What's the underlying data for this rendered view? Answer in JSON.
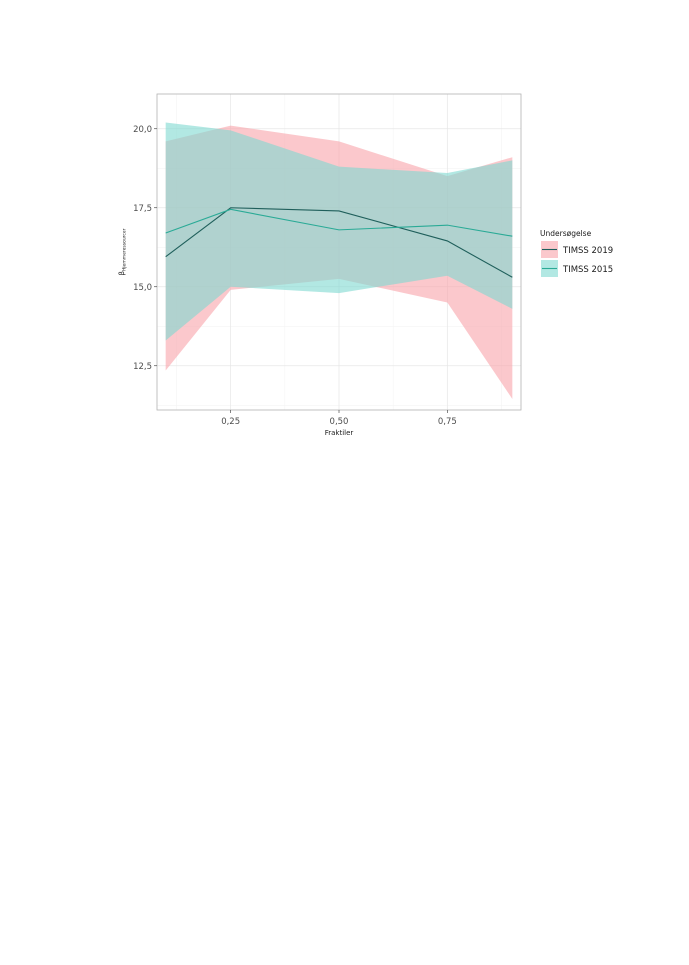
{
  "chart_data": {
    "type": "line",
    "title": "",
    "xlabel": "Fraktiler",
    "ylabel_symbol": "β",
    "ylabel_subscript": "Hjemmeressourcer",
    "xlim": [
      0.08,
      0.92
    ],
    "ylim": [
      11.1,
      21.1
    ],
    "x_ticks": [
      {
        "value": 0.25,
        "label": "0,25"
      },
      {
        "value": 0.5,
        "label": "0,50"
      },
      {
        "value": 0.75,
        "label": "0,75"
      }
    ],
    "y_ticks": [
      {
        "value": 12.5,
        "label": "12,5"
      },
      {
        "value": 15.0,
        "label": "15,0"
      },
      {
        "value": 17.5,
        "label": "17,5"
      },
      {
        "value": 20.0,
        "label": "20,0"
      }
    ],
    "grid": true,
    "legend_title": "Undersøgelse",
    "legend_position": "right",
    "x": [
      0.1,
      0.25,
      0.5,
      0.75,
      0.9
    ],
    "series": [
      {
        "name": "TIMSS 2019",
        "line_color": "#1f5f5b",
        "ribbon_color": "#f8a4aa",
        "values": [
          15.95,
          17.5,
          17.4,
          16.45,
          15.3
        ],
        "lower": [
          12.35,
          14.9,
          15.25,
          14.5,
          11.45
        ],
        "upper": [
          19.6,
          20.1,
          19.6,
          18.5,
          19.1
        ]
      },
      {
        "name": "TIMSS 2015",
        "line_color": "#2aaa96",
        "ribbon_color": "#7fd8d0",
        "values": [
          16.7,
          17.45,
          16.8,
          16.95,
          16.6
        ],
        "lower": [
          13.3,
          15.0,
          14.8,
          15.35,
          14.3
        ],
        "upper": [
          20.2,
          19.95,
          18.8,
          18.6,
          19.0
        ]
      }
    ]
  }
}
